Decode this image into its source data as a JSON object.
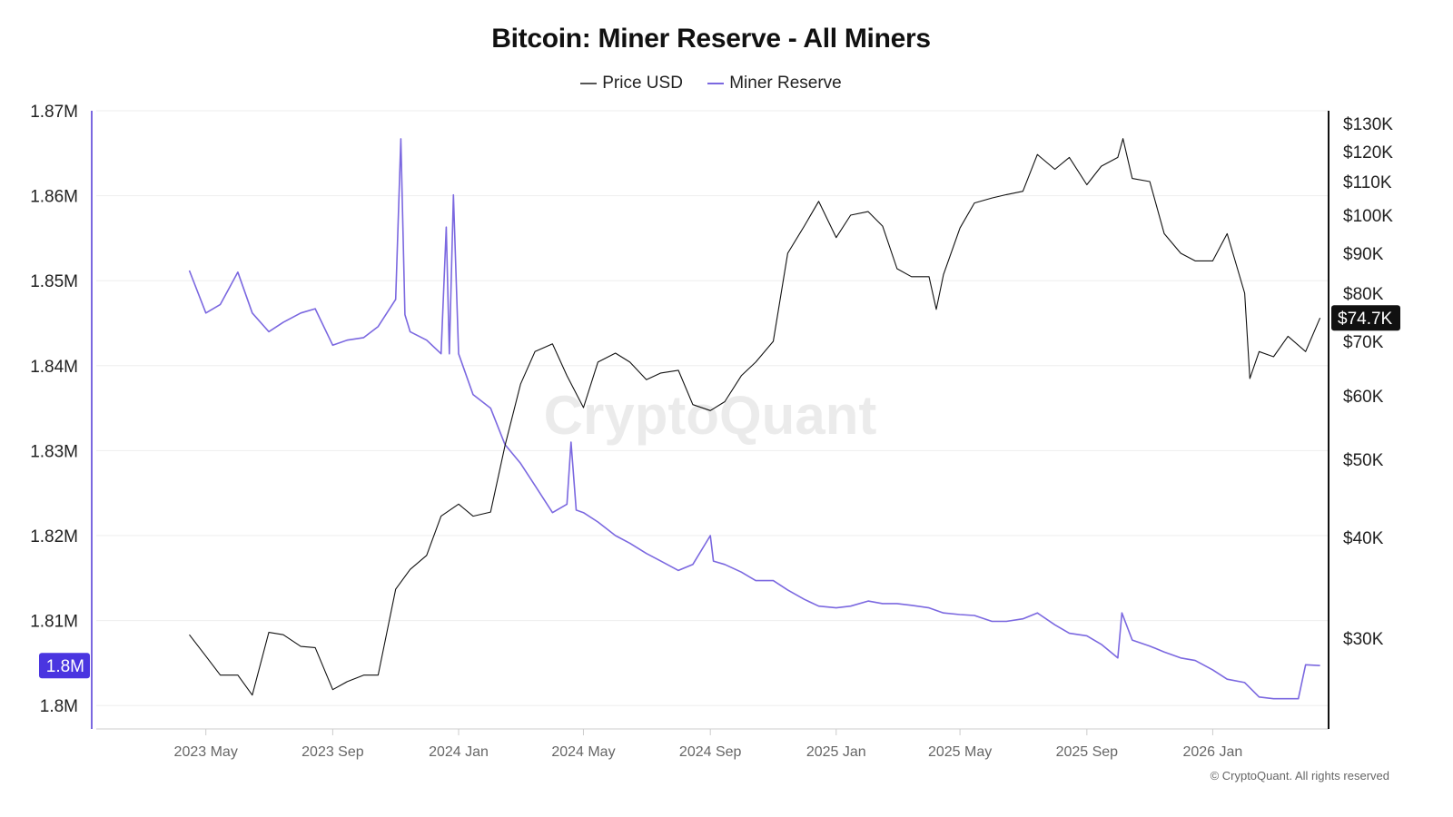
{
  "chart_data": {
    "type": "line",
    "title": "Bitcoin: Miner Reserve - All Miners",
    "legend": [
      "Price USD",
      "Miner Reserve"
    ],
    "legend_position": "top",
    "grid": true,
    "watermark": "CryptoQuant",
    "copyright": "© CryptoQuant. All rights reserved",
    "colors": {
      "price": "#111111",
      "reserve": "#7b68e0",
      "reserve_badge": "#4a35e0",
      "price_badge": "#111111"
    },
    "x_ticks": [
      "2023 May",
      "2023 Sep",
      "2024 Jan",
      "2024 May",
      "2024 Sep",
      "2025 Jan",
      "2025 May",
      "2025 Sep",
      "2026 Jan"
    ],
    "x_tick_dates": [
      "2023-05-01",
      "2023-09-01",
      "2024-01-01",
      "2024-05-01",
      "2024-09-01",
      "2025-01-01",
      "2025-05-01",
      "2025-09-01",
      "2026-01-01"
    ],
    "left_axis": {
      "scale": "linear",
      "range": [
        1.8,
        1.87
      ],
      "unit": "M",
      "ticks": [
        "1.87M",
        "1.86M",
        "1.85M",
        "1.84M",
        "1.83M",
        "1.82M",
        "1.81M",
        "1.8M"
      ],
      "tick_values": [
        1.87,
        1.86,
        1.85,
        1.84,
        1.83,
        1.82,
        1.81,
        1.8
      ],
      "current_label": "1.8M"
    },
    "right_axis": {
      "scale": "log",
      "ticks": [
        "$130K",
        "$120K",
        "$110K",
        "$100K",
        "$90K",
        "$80K",
        "$70K",
        "$60K",
        "$50K",
        "$40K",
        "$30K"
      ],
      "tick_values": [
        130000,
        120000,
        110000,
        100000,
        90000,
        80000,
        70000,
        60000,
        50000,
        40000,
        30000
      ],
      "current_label": "$74.7K"
    },
    "series": [
      {
        "name": "Miner Reserve",
        "axis": "left",
        "unit": "M BTC",
        "points": [
          [
            "2023-04-15",
            1.8512
          ],
          [
            "2023-05-01",
            1.8462
          ],
          [
            "2023-05-15",
            1.8472
          ],
          [
            "2023-06-01",
            1.851
          ],
          [
            "2023-06-15",
            1.8462
          ],
          [
            "2023-07-01",
            1.844
          ],
          [
            "2023-07-15",
            1.8451
          ],
          [
            "2023-08-01",
            1.8462
          ],
          [
            "2023-08-15",
            1.8467
          ],
          [
            "2023-09-01",
            1.8424
          ],
          [
            "2023-09-15",
            1.843
          ],
          [
            "2023-10-01",
            1.8433
          ],
          [
            "2023-10-15",
            1.8446
          ],
          [
            "2023-11-01",
            1.8478
          ],
          [
            "2023-11-06",
            1.8667
          ],
          [
            "2023-11-10",
            1.846
          ],
          [
            "2023-11-15",
            1.844
          ],
          [
            "2023-12-01",
            1.843
          ],
          [
            "2023-12-15",
            1.8414
          ],
          [
            "2023-12-20",
            1.8563
          ],
          [
            "2023-12-23",
            1.8414
          ],
          [
            "2023-12-27",
            1.8601
          ],
          [
            "2024-01-01",
            1.8414
          ],
          [
            "2024-01-15",
            1.8366
          ],
          [
            "2024-02-01",
            1.835
          ],
          [
            "2024-02-15",
            1.8307
          ],
          [
            "2024-03-01",
            1.8285
          ],
          [
            "2024-03-15",
            1.8259
          ],
          [
            "2024-04-01",
            1.8227
          ],
          [
            "2024-04-15",
            1.8237
          ],
          [
            "2024-04-19",
            1.831
          ],
          [
            "2024-04-24",
            1.823
          ],
          [
            "2024-05-01",
            1.8227
          ],
          [
            "2024-05-15",
            1.8216
          ],
          [
            "2024-06-01",
            1.82
          ],
          [
            "2024-06-15",
            1.8191
          ],
          [
            "2024-07-01",
            1.8179
          ],
          [
            "2024-07-15",
            1.817
          ],
          [
            "2024-08-01",
            1.8159
          ],
          [
            "2024-08-15",
            1.8166
          ],
          [
            "2024-09-01",
            1.82
          ],
          [
            "2024-09-04",
            1.817
          ],
          [
            "2024-09-15",
            1.8166
          ],
          [
            "2024-10-01",
            1.8157
          ],
          [
            "2024-10-15",
            1.8147
          ],
          [
            "2024-11-01",
            1.8147
          ],
          [
            "2024-11-15",
            1.8136
          ],
          [
            "2024-12-01",
            1.8125
          ],
          [
            "2024-12-15",
            1.8117
          ],
          [
            "2025-01-01",
            1.8115
          ],
          [
            "2025-01-15",
            1.8117
          ],
          [
            "2025-02-01",
            1.8123
          ],
          [
            "2025-02-15",
            1.812
          ],
          [
            "2025-03-01",
            1.812
          ],
          [
            "2025-03-15",
            1.8118
          ],
          [
            "2025-04-01",
            1.8115
          ],
          [
            "2025-04-15",
            1.8109
          ],
          [
            "2025-05-01",
            1.8107
          ],
          [
            "2025-05-15",
            1.8106
          ],
          [
            "2025-06-01",
            1.8099
          ],
          [
            "2025-06-15",
            1.8099
          ],
          [
            "2025-07-01",
            1.8102
          ],
          [
            "2025-07-15",
            1.8109
          ],
          [
            "2025-08-01",
            1.8095
          ],
          [
            "2025-08-15",
            1.8085
          ],
          [
            "2025-09-01",
            1.8082
          ],
          [
            "2025-09-15",
            1.8072
          ],
          [
            "2025-10-01",
            1.8056
          ],
          [
            "2025-10-05",
            1.8109
          ],
          [
            "2025-10-15",
            1.8077
          ],
          [
            "2025-11-01",
            1.807
          ],
          [
            "2025-11-15",
            1.8063
          ],
          [
            "2025-12-01",
            1.8056
          ],
          [
            "2025-12-15",
            1.8053
          ],
          [
            "2026-01-01",
            1.8042
          ],
          [
            "2026-01-15",
            1.8031
          ],
          [
            "2026-02-01",
            1.8027
          ],
          [
            "2026-02-15",
            1.801
          ],
          [
            "2026-03-01",
            1.8008
          ],
          [
            "2026-03-25",
            1.8008
          ],
          [
            "2026-04-01",
            1.8048
          ],
          [
            "2026-04-15",
            1.8047
          ]
        ]
      },
      {
        "name": "Price USD",
        "axis": "right",
        "unit": "USD",
        "points": [
          [
            "2023-04-15",
            30300
          ],
          [
            "2023-05-01",
            28500
          ],
          [
            "2023-05-15",
            27000
          ],
          [
            "2023-06-01",
            27000
          ],
          [
            "2023-06-15",
            25500
          ],
          [
            "2023-07-01",
            30500
          ],
          [
            "2023-07-15",
            30300
          ],
          [
            "2023-08-01",
            29300
          ],
          [
            "2023-08-15",
            29200
          ],
          [
            "2023-09-01",
            25900
          ],
          [
            "2023-09-15",
            26500
          ],
          [
            "2023-10-01",
            27000
          ],
          [
            "2023-10-15",
            27000
          ],
          [
            "2023-11-01",
            34500
          ],
          [
            "2023-11-15",
            36500
          ],
          [
            "2023-12-01",
            38000
          ],
          [
            "2023-12-15",
            42500
          ],
          [
            "2024-01-01",
            44000
          ],
          [
            "2024-01-15",
            42500
          ],
          [
            "2024-02-01",
            43000
          ],
          [
            "2024-02-15",
            52000
          ],
          [
            "2024-03-01",
            62000
          ],
          [
            "2024-03-15",
            68000
          ],
          [
            "2024-04-01",
            69500
          ],
          [
            "2024-04-15",
            63500
          ],
          [
            "2024-05-01",
            58000
          ],
          [
            "2024-05-15",
            66000
          ],
          [
            "2024-06-01",
            67700
          ],
          [
            "2024-06-15",
            66000
          ],
          [
            "2024-07-01",
            62800
          ],
          [
            "2024-07-15",
            64000
          ],
          [
            "2024-08-01",
            64500
          ],
          [
            "2024-08-15",
            58500
          ],
          [
            "2024-09-01",
            57500
          ],
          [
            "2024-09-15",
            59000
          ],
          [
            "2024-10-01",
            63500
          ],
          [
            "2024-10-15",
            66000
          ],
          [
            "2024-11-01",
            70000
          ],
          [
            "2024-11-15",
            90000
          ],
          [
            "2024-12-01",
            97000
          ],
          [
            "2024-12-15",
            104000
          ],
          [
            "2025-01-01",
            94000
          ],
          [
            "2025-01-15",
            100000
          ],
          [
            "2025-02-01",
            101000
          ],
          [
            "2025-02-15",
            97000
          ],
          [
            "2025-03-01",
            86000
          ],
          [
            "2025-03-15",
            84000
          ],
          [
            "2025-04-01",
            84000
          ],
          [
            "2025-04-08",
            76500
          ],
          [
            "2025-04-15",
            84500
          ],
          [
            "2025-05-01",
            96500
          ],
          [
            "2025-05-15",
            103500
          ],
          [
            "2025-06-01",
            105000
          ],
          [
            "2025-06-15",
            106000
          ],
          [
            "2025-07-01",
            107000
          ],
          [
            "2025-07-15",
            119000
          ],
          [
            "2025-08-01",
            114000
          ],
          [
            "2025-08-15",
            118000
          ],
          [
            "2025-09-01",
            109000
          ],
          [
            "2025-09-15",
            115000
          ],
          [
            "2025-10-01",
            118000
          ],
          [
            "2025-10-06",
            124500
          ],
          [
            "2025-10-15",
            111000
          ],
          [
            "2025-11-01",
            110000
          ],
          [
            "2025-11-15",
            95000
          ],
          [
            "2025-12-01",
            90000
          ],
          [
            "2025-12-15",
            88000
          ],
          [
            "2026-01-01",
            88000
          ],
          [
            "2026-01-15",
            95000
          ],
          [
            "2026-02-01",
            80000
          ],
          [
            "2026-02-06",
            63000
          ],
          [
            "2026-02-15",
            68000
          ],
          [
            "2026-03-01",
            67000
          ],
          [
            "2026-03-15",
            71000
          ],
          [
            "2026-04-01",
            68000
          ],
          [
            "2026-04-15",
            74700
          ]
        ]
      }
    ]
  }
}
